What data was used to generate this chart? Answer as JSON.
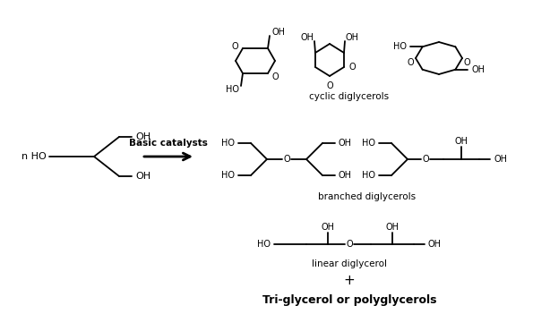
{
  "background_color": "#ffffff",
  "text_color": "#000000",
  "figsize": [
    6.14,
    3.51
  ],
  "dpi": 100,
  "arrow_label": "Basic catalysts",
  "cyclic_label": "cyclic diglycerols",
  "branched_label": "branched diglycerols",
  "linear_label": "linear diglycerol",
  "bottom_label": "Tri-glycerol or polyglycerols",
  "plus_sign": "+"
}
